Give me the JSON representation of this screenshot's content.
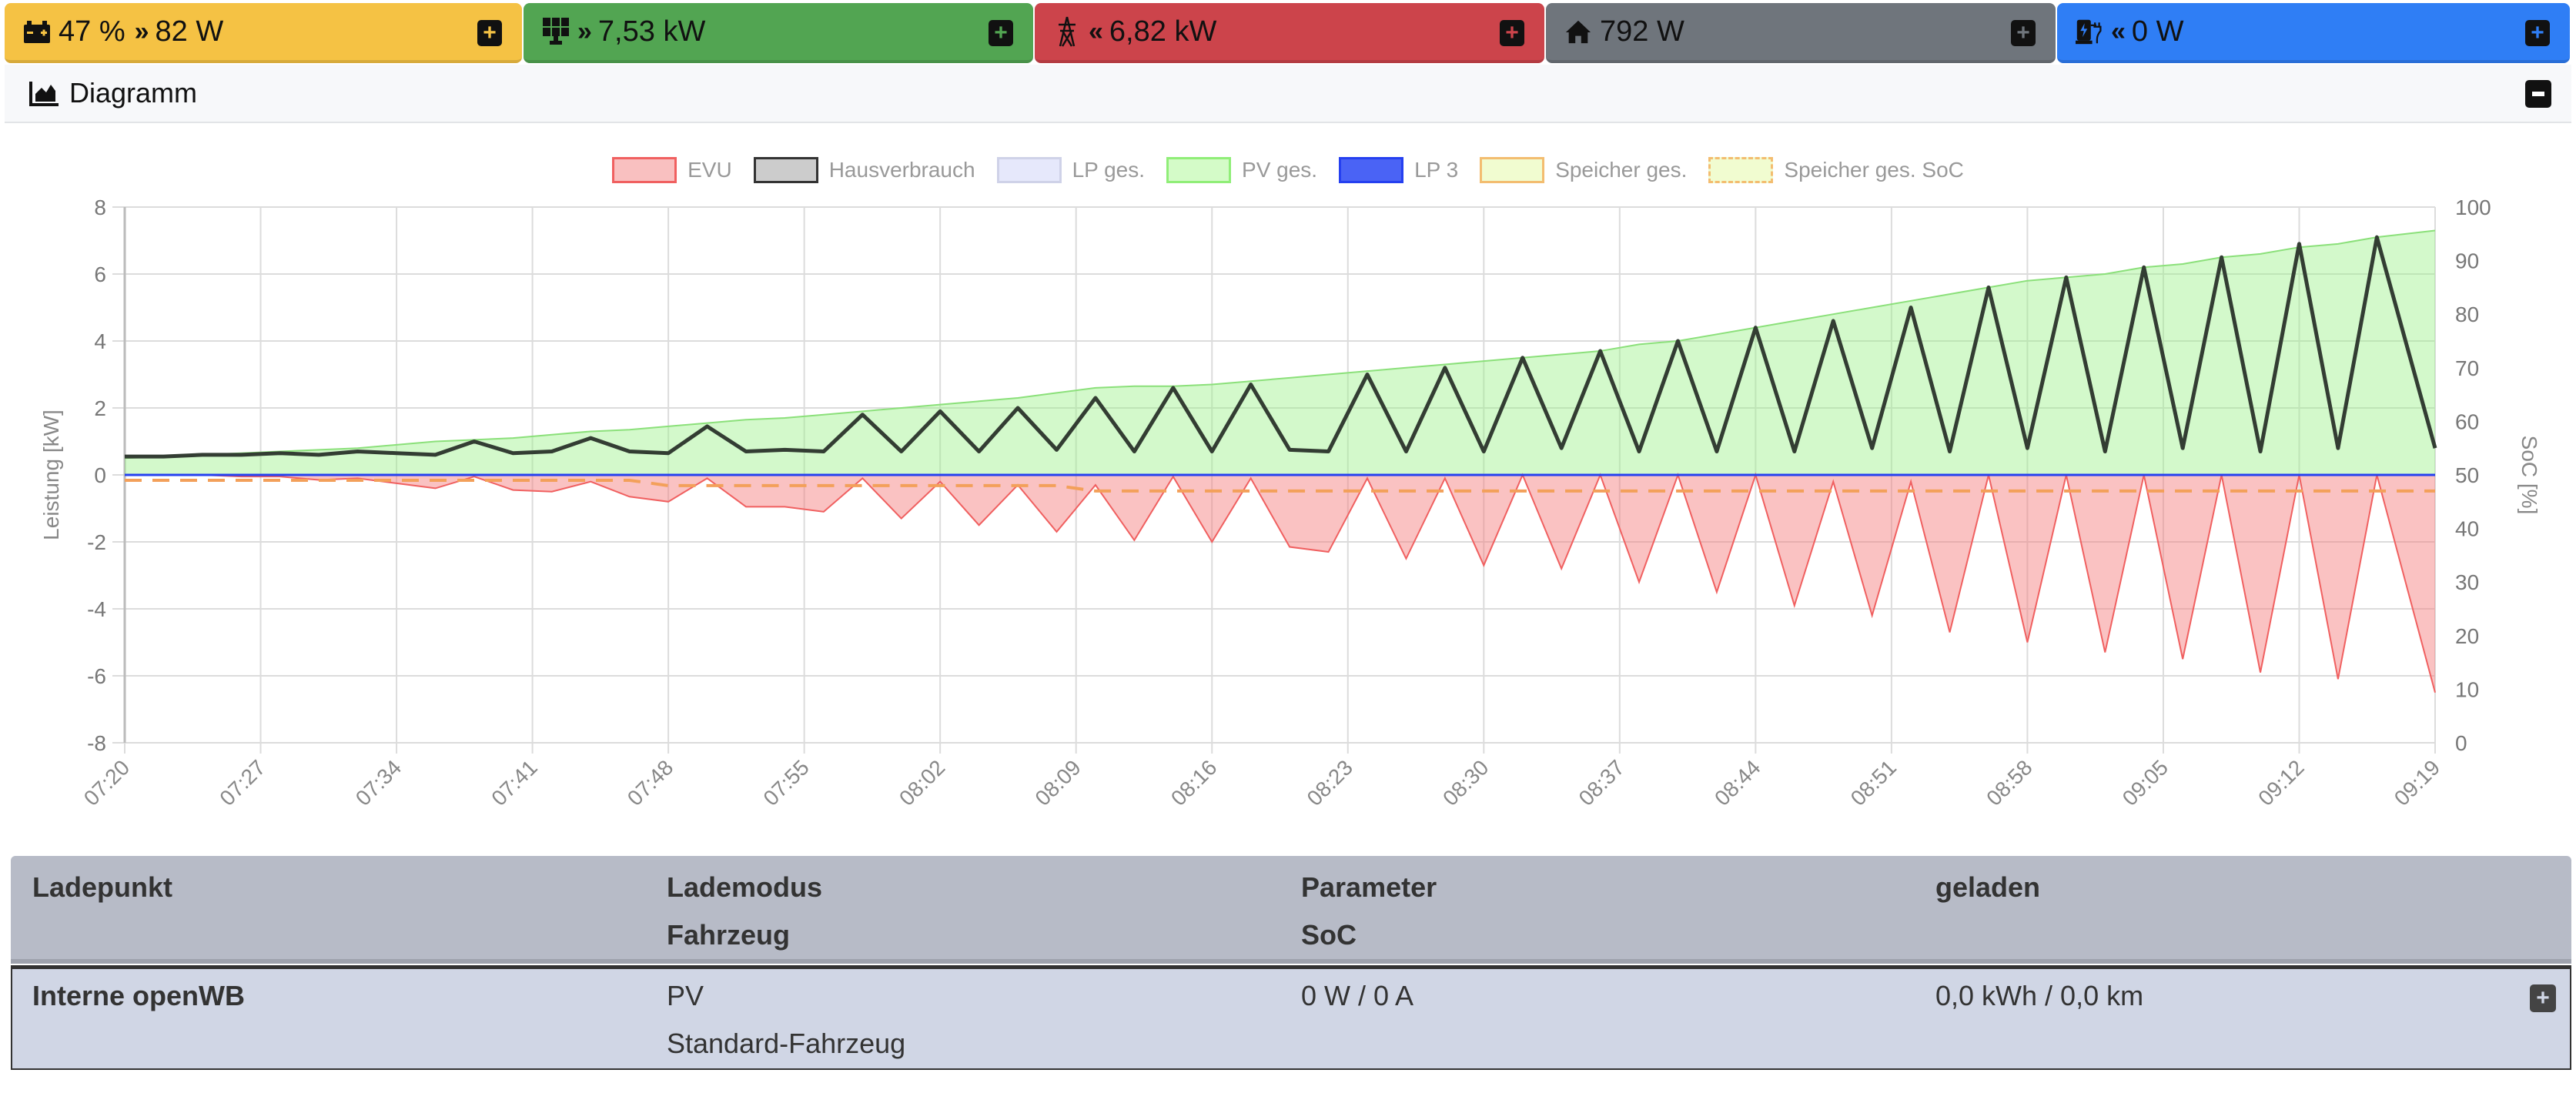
{
  "topbar": {
    "tiles": [
      {
        "icon": "battery-icon",
        "arrow": "»",
        "value": "47 %",
        "power": "82 W",
        "color": "#f5c244",
        "plus_color": "#f5c244"
      },
      {
        "icon": "solar-panel-icon",
        "arrow": "»",
        "value": "7,53 kW",
        "color": "#52a552",
        "plus_color": "#52a552"
      },
      {
        "icon": "power-tower-icon",
        "arrow": "«",
        "value": "6,82 kW",
        "color": "#cc444b",
        "plus_color": "#cc444b"
      },
      {
        "icon": "home-icon",
        "value": "792 W",
        "color": "#6f757c",
        "plus_color": "#6f757c"
      },
      {
        "icon": "charging-station-icon",
        "arrow": "«",
        "value": "0 W",
        "color": "#2f7ef5",
        "plus_color": "#2f7ef5"
      }
    ]
  },
  "diagram": {
    "title": "Diagramm"
  },
  "chart_data": {
    "type": "line",
    "title": "",
    "ylabel": "Leistung [kW]",
    "y2label": "SoC [%]",
    "ylim": [
      -8,
      8
    ],
    "y_ticks": [
      "8",
      "6",
      "4",
      "2",
      "0",
      "-2",
      "-4",
      "-6",
      "-8"
    ],
    "y2lim": [
      0,
      100
    ],
    "y2_ticks": [
      "100",
      "90",
      "80",
      "70",
      "60",
      "50",
      "40",
      "30",
      "20",
      "10",
      "0"
    ],
    "x_ticks": [
      "07:20",
      "07:27",
      "07:34",
      "07:41",
      "07:48",
      "07:55",
      "08:02",
      "08:09",
      "08:16",
      "08:23",
      "08:30",
      "08:37",
      "08:44",
      "08:51",
      "08:58",
      "09:05",
      "09:12",
      "09:19"
    ],
    "x_start": "07:20",
    "x_end": "09:19",
    "step_minutes": 2,
    "grid": true,
    "legend_position": "top",
    "legend": [
      {
        "name": "EVU",
        "fill": "#f9c0c0",
        "stroke": "#f06060",
        "style": "solid"
      },
      {
        "name": "Hausverbrauch",
        "fill": "#cccccc",
        "stroke": "#333333",
        "style": "solid"
      },
      {
        "name": "LP ges.",
        "fill": "#e6e8fb",
        "stroke": "#cfd2e8",
        "style": "solid"
      },
      {
        "name": "PV ges.",
        "fill": "#d4fbc8",
        "stroke": "#90ee78",
        "style": "solid"
      },
      {
        "name": "LP 3",
        "fill": "#4a63f5",
        "stroke": "#2540f0",
        "style": "solid"
      },
      {
        "name": "Speicher ges.",
        "fill": "#f1fcd0",
        "stroke": "#f3bd70",
        "style": "solid"
      },
      {
        "name": "Speicher ges. SoC",
        "fill": "#f1fcd0",
        "stroke": "#f3bd70",
        "style": "dashed"
      }
    ],
    "series": [
      {
        "name": "PV ges.",
        "axis": "left",
        "values": [
          0.5,
          0.55,
          0.6,
          0.65,
          0.7,
          0.75,
          0.8,
          0.9,
          1.0,
          1.05,
          1.1,
          1.2,
          1.3,
          1.35,
          1.45,
          1.55,
          1.65,
          1.7,
          1.8,
          1.9,
          2.0,
          2.1,
          2.2,
          2.3,
          2.45,
          2.6,
          2.65,
          2.65,
          2.7,
          2.8,
          2.9,
          3.0,
          3.1,
          3.2,
          3.3,
          3.4,
          3.5,
          3.6,
          3.7,
          3.9,
          4.0,
          4.2,
          4.4,
          4.6,
          4.8,
          5.0,
          5.2,
          5.4,
          5.6,
          5.8,
          5.9,
          6.0,
          6.2,
          6.3,
          6.5,
          6.6,
          6.8,
          6.9,
          7.1,
          7.3
        ]
      },
      {
        "name": "Hausverbrauch",
        "axis": "left",
        "values": [
          0.55,
          0.55,
          0.6,
          0.6,
          0.65,
          0.6,
          0.7,
          0.65,
          0.6,
          1.0,
          0.65,
          0.7,
          1.1,
          0.7,
          0.65,
          1.45,
          0.7,
          0.75,
          0.7,
          1.8,
          0.7,
          1.9,
          0.7,
          2.0,
          0.75,
          2.3,
          0.7,
          2.6,
          0.7,
          2.7,
          0.75,
          0.7,
          3.0,
          0.7,
          3.2,
          0.7,
          3.5,
          0.8,
          3.7,
          0.7,
          4.0,
          0.7,
          4.4,
          0.7,
          4.6,
          0.8,
          5.0,
          0.7,
          5.6,
          0.8,
          5.9,
          0.7,
          6.2,
          0.8,
          6.5,
          0.7,
          6.9,
          0.8,
          7.1,
          0.8
        ]
      },
      {
        "name": "EVU",
        "axis": "left",
        "values": [
          0,
          0,
          0,
          -0.05,
          -0.05,
          -0.15,
          -0.1,
          -0.25,
          -0.4,
          -0.05,
          -0.45,
          -0.5,
          -0.2,
          -0.65,
          -0.8,
          -0.1,
          -0.95,
          -0.95,
          -1.1,
          -0.1,
          -1.3,
          -0.2,
          -1.5,
          -0.3,
          -1.7,
          -0.3,
          -1.95,
          -0.05,
          -2.0,
          -0.1,
          -2.15,
          -2.3,
          -0.1,
          -2.5,
          -0.1,
          -2.7,
          0,
          -2.8,
          0,
          -3.2,
          0,
          -3.5,
          0,
          -3.9,
          -0.2,
          -4.2,
          -0.2,
          -4.7,
          0,
          -5.0,
          0,
          -5.3,
          0,
          -5.5,
          0,
          -5.9,
          0,
          -6.1,
          0,
          -6.5
        ]
      },
      {
        "name": "LP 3",
        "axis": "left",
        "values": [
          0,
          0
        ]
      },
      {
        "name": "Speicher ges. SoC",
        "axis": "right",
        "values": [
          49,
          49,
          49,
          49,
          49,
          49,
          49,
          49,
          49,
          49,
          49,
          49,
          49,
          49,
          48,
          48,
          48,
          48,
          48,
          48,
          48,
          48,
          48,
          48,
          48,
          47,
          47,
          47,
          47,
          47,
          47,
          47,
          47,
          47,
          47,
          47,
          47,
          47,
          47,
          47,
          47,
          47,
          47,
          47,
          47,
          47,
          47,
          47,
          47,
          47,
          47,
          47,
          47,
          47,
          47,
          47,
          47,
          47,
          47,
          47
        ]
      }
    ]
  },
  "table": {
    "headers": {
      "col1": "Ladepunkt",
      "col2a": "Lademodus",
      "col2b": "Fahrzeug",
      "col3a": "Parameter",
      "col3b": "SoC",
      "col4": "geladen"
    },
    "rows": [
      {
        "ladepunkt": "Interne openWB",
        "lademodus": "PV",
        "fahrzeug": "Standard-Fahrzeug",
        "parameter": "0 W / 0 A",
        "geladen": "0,0 kWh / 0,0 km"
      }
    ]
  }
}
